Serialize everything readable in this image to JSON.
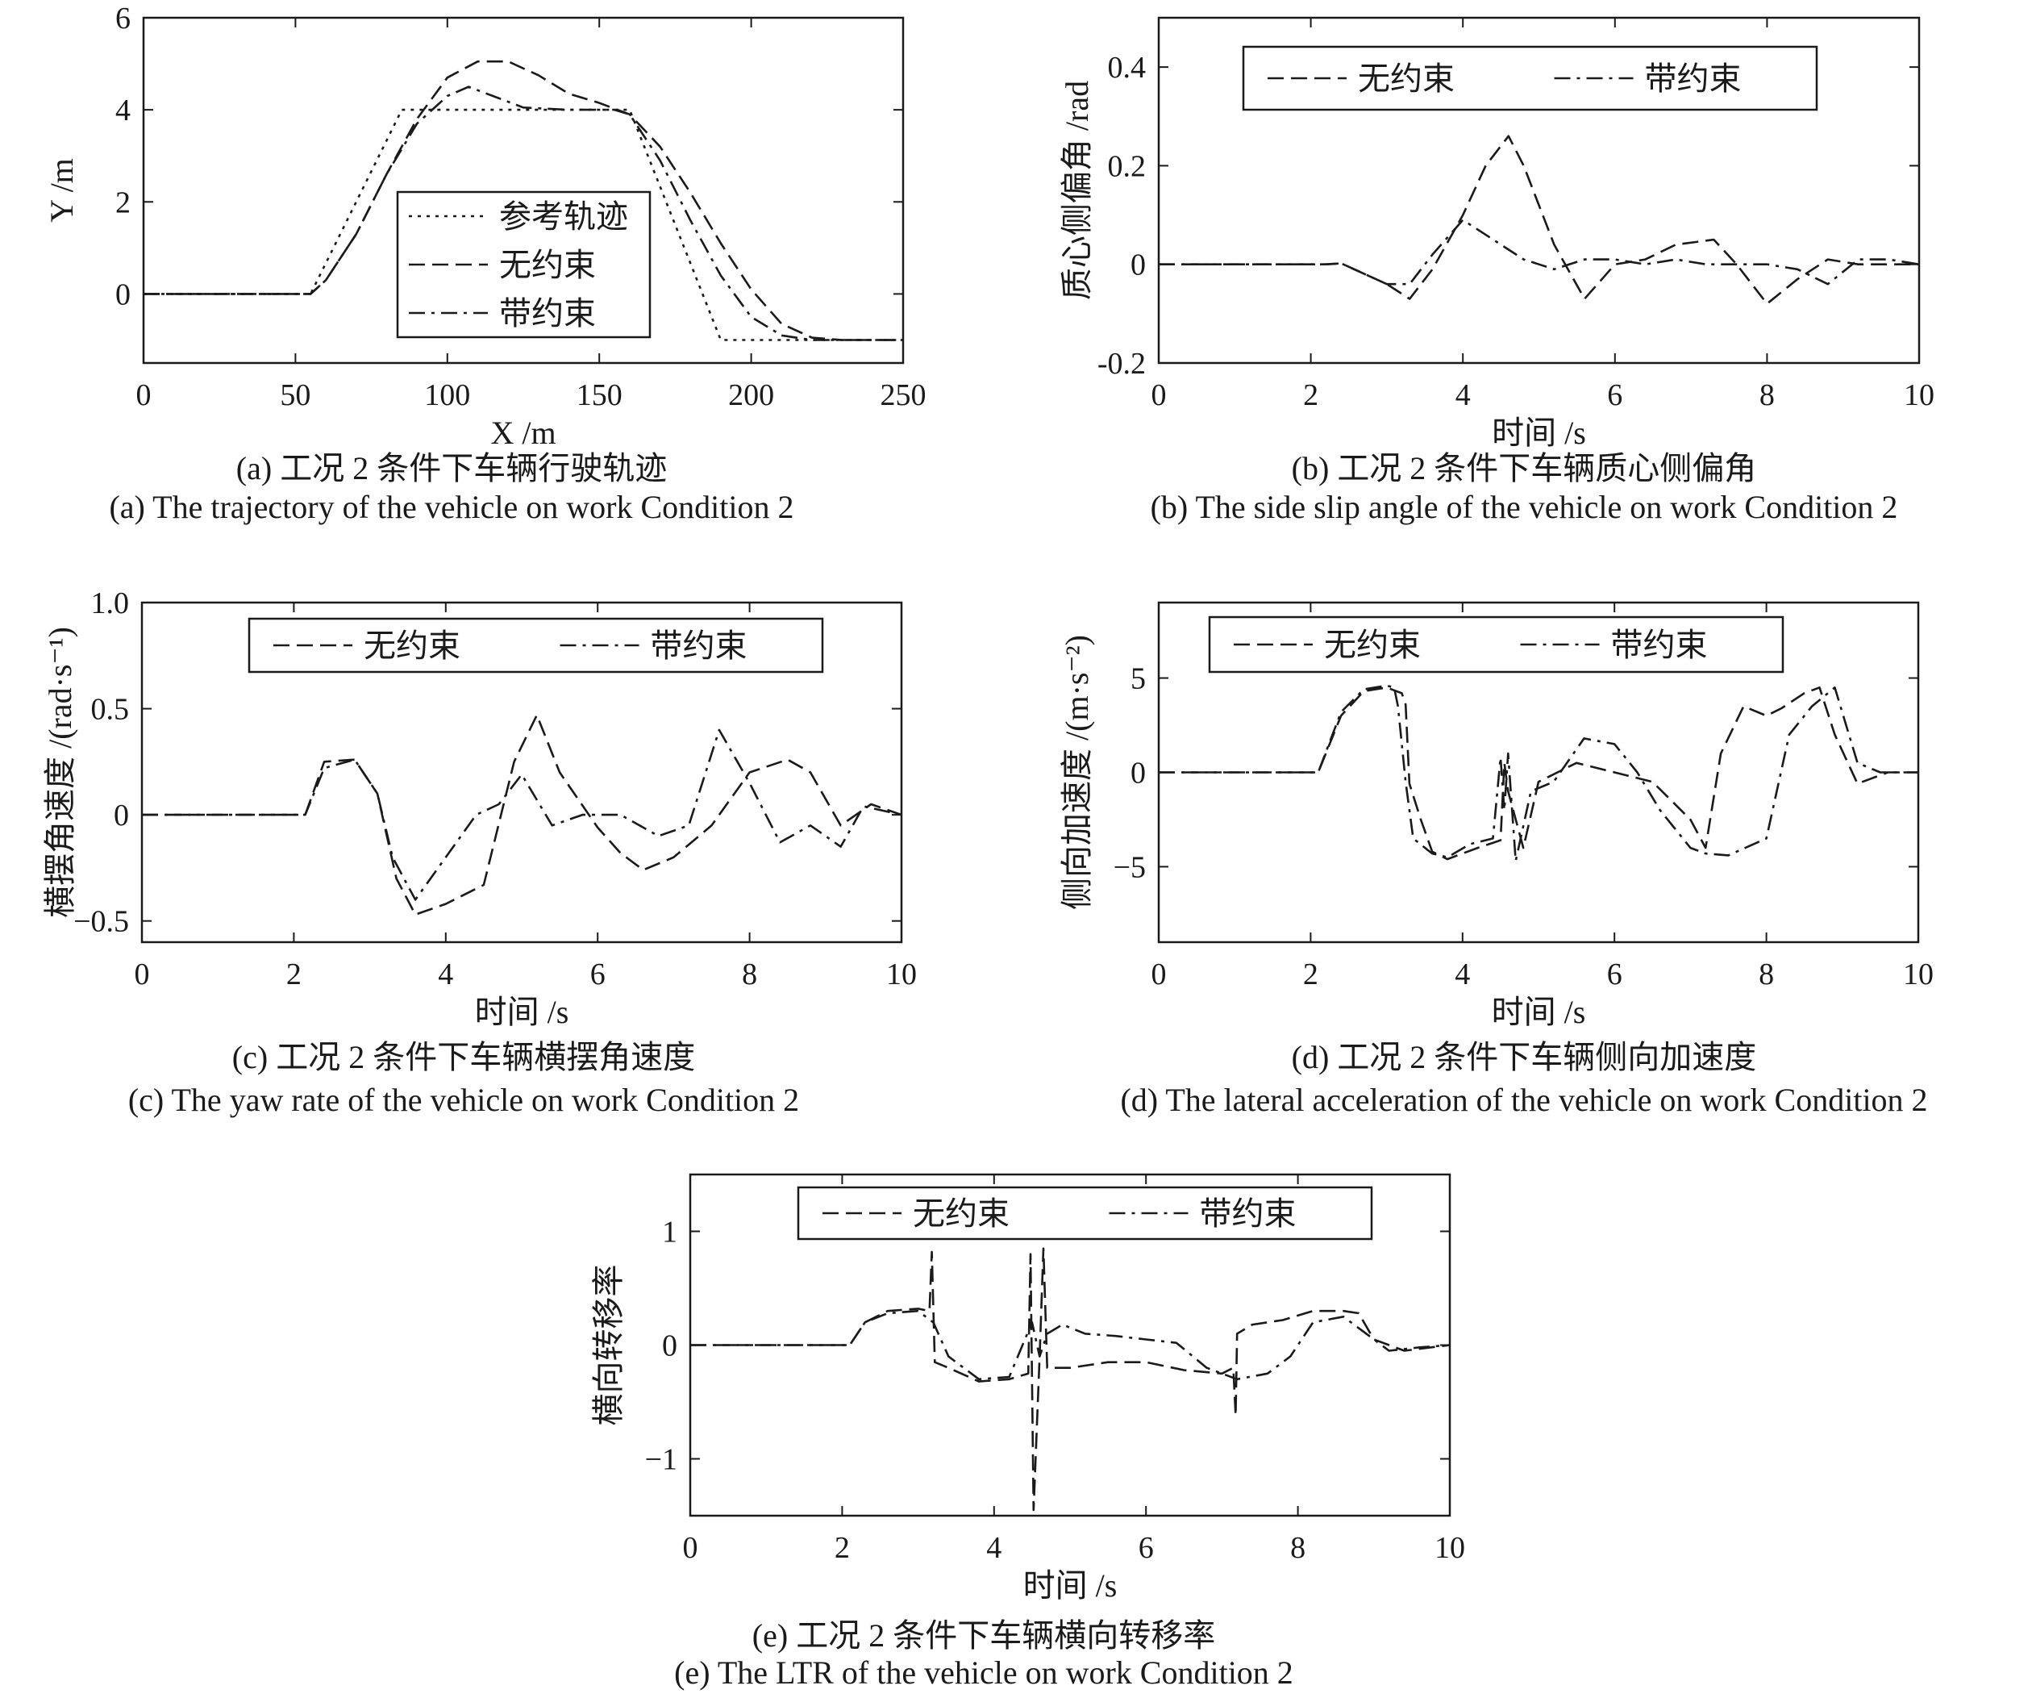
{
  "figures": [
    {
      "caption_cn": "(a) 工况 2 条件下车辆行驶轨迹",
      "caption_en": "(a) The trajectory of the vehicle on work Condition 2"
    },
    {
      "caption_cn": "(b) 工况 2 条件下车辆质心侧偏角",
      "caption_en": "(b) The side slip angle of the vehicle on work Condition 2"
    },
    {
      "caption_cn": "(c) 工况 2 条件下车辆横摆角速度",
      "caption_en": "(c) The yaw rate of the vehicle on work Condition 2"
    },
    {
      "caption_cn": "(d) 工况 2 条件下车辆侧向加速度",
      "caption_en": "(d) The lateral acceleration of the vehicle on work Condition 2"
    },
    {
      "caption_cn": "(e) 工况 2 条件下车辆横向转移率",
      "caption_en": "(e) The LTR of the vehicle on work Condition 2"
    }
  ],
  "colors": {
    "ink": "#1a1a1a"
  },
  "chart_data": [
    {
      "id": "a",
      "type": "line",
      "xlabel": "X /m",
      "ylabel": "Y /m",
      "xlim": [
        0,
        250
      ],
      "ylim": [
        -1.5,
        6
      ],
      "xticks": [
        0,
        50,
        100,
        150,
        200,
        250
      ],
      "yticks": [
        0,
        2,
        4,
        6
      ],
      "legend": "bottom-center",
      "series": [
        {
          "name": "参考轨迹",
          "dash": "dot",
          "x": [
            0,
            55,
            85,
            160,
            190,
            250
          ],
          "y": [
            0,
            0,
            4,
            4,
            -1,
            -1
          ]
        },
        {
          "name": "无约束",
          "dash": "dash",
          "x": [
            0,
            55,
            60,
            70,
            80,
            90,
            100,
            110,
            120,
            130,
            140,
            150,
            160,
            170,
            180,
            190,
            200,
            210,
            220,
            230,
            250
          ],
          "y": [
            0,
            0,
            0.3,
            1.3,
            2.6,
            3.8,
            4.7,
            5.05,
            5.05,
            4.75,
            4.35,
            4.15,
            3.9,
            3.2,
            2.2,
            1.1,
            0.1,
            -0.65,
            -0.95,
            -1.0,
            -1.0
          ]
        },
        {
          "name": "带约束",
          "dash": "dashdot",
          "x": [
            0,
            55,
            60,
            70,
            80,
            90,
            100,
            107,
            115,
            125,
            140,
            155,
            160,
            170,
            180,
            190,
            200,
            210,
            220,
            250
          ],
          "y": [
            0,
            0,
            0.3,
            1.3,
            2.6,
            3.7,
            4.3,
            4.5,
            4.3,
            4.05,
            4.0,
            4.0,
            3.9,
            2.9,
            1.6,
            0.4,
            -0.5,
            -0.9,
            -1.0,
            -1.0
          ]
        }
      ]
    },
    {
      "id": "b",
      "type": "line",
      "xlabel": "时间 /s",
      "ylabel": "质心侧偏角 /rad",
      "xlim": [
        0,
        10
      ],
      "ylim": [
        -0.2,
        0.5
      ],
      "xticks": [
        0,
        2,
        4,
        6,
        8,
        10
      ],
      "yticks": [
        -0.2,
        0,
        0.2,
        0.4
      ],
      "legend": "top",
      "series": [
        {
          "name": "无约束",
          "dash": "dash",
          "x": [
            0,
            2.2,
            2.4,
            3.0,
            3.3,
            3.6,
            4.0,
            4.3,
            4.6,
            4.8,
            5.2,
            5.6,
            6.0,
            6.4,
            6.8,
            7.3,
            7.6,
            8.0,
            8.4,
            8.8,
            9.2,
            9.6,
            10
          ],
          "y": [
            0,
            0,
            0.002,
            -0.04,
            -0.07,
            -0.01,
            0.1,
            0.2,
            0.26,
            0.2,
            0.04,
            -0.07,
            0.0,
            0.01,
            0.04,
            0.05,
            0.0,
            -0.08,
            -0.03,
            0.01,
            0.0,
            0.0,
            0.0
          ]
        },
        {
          "name": "带约束",
          "dash": "dashdot",
          "x": [
            0,
            2.2,
            2.4,
            3.0,
            3.3,
            3.6,
            4.0,
            4.4,
            4.8,
            5.2,
            5.6,
            6.0,
            6.4,
            6.8,
            7.2,
            7.6,
            8.0,
            8.4,
            8.8,
            9.2,
            9.6,
            10
          ],
          "y": [
            0,
            0,
            0.002,
            -0.04,
            -0.04,
            0.02,
            0.09,
            0.05,
            0.01,
            -0.01,
            0.01,
            0.01,
            0.0,
            0.01,
            0.0,
            0.0,
            0.0,
            -0.01,
            -0.04,
            0.01,
            0.01,
            0.0
          ]
        }
      ]
    },
    {
      "id": "c",
      "type": "line",
      "xlabel": "时间 /s",
      "ylabel": "横摆角速度 /(rad·s⁻¹)",
      "xlim": [
        0,
        10
      ],
      "ylim": [
        -0.6,
        1.0
      ],
      "xticks": [
        0,
        2,
        4,
        6,
        8,
        10
      ],
      "yticks": [
        -0.5,
        0,
        0.5,
        1.0
      ],
      "ytick_labels": [
        "−0.5",
        "0",
        "0.5",
        "1.0"
      ],
      "legend": "top",
      "series": [
        {
          "name": "无约束",
          "dash": "dash",
          "x": [
            0,
            2.15,
            2.4,
            2.8,
            3.1,
            3.35,
            3.6,
            4.0,
            4.5,
            4.9,
            5.2,
            5.5,
            6.0,
            6.3,
            6.6,
            7.0,
            7.5,
            8.0,
            8.5,
            8.8,
            9.2,
            9.6,
            10
          ],
          "y": [
            0,
            0,
            0.25,
            0.26,
            0.1,
            -0.3,
            -0.47,
            -0.42,
            -0.33,
            0.25,
            0.47,
            0.2,
            -0.06,
            -0.18,
            -0.26,
            -0.2,
            -0.05,
            0.2,
            0.26,
            0.2,
            -0.05,
            0.05,
            0.0
          ]
        },
        {
          "name": "带约束",
          "dash": "dashdot",
          "x": [
            0,
            2.15,
            2.4,
            2.8,
            3.1,
            3.3,
            3.6,
            4.0,
            4.4,
            4.7,
            5.0,
            5.4,
            5.8,
            6.3,
            6.8,
            7.2,
            7.6,
            8.0,
            8.4,
            8.8,
            9.2,
            9.5,
            10
          ],
          "y": [
            0,
            0,
            0.22,
            0.26,
            0.1,
            -0.2,
            -0.4,
            -0.2,
            0.0,
            0.05,
            0.19,
            -0.05,
            0.0,
            0.0,
            -0.1,
            -0.05,
            0.4,
            0.15,
            -0.13,
            -0.05,
            -0.15,
            0.04,
            0.0
          ]
        }
      ]
    },
    {
      "id": "d",
      "type": "line",
      "xlabel": "时间 /s",
      "ylabel": "侧向加速度 /(m·s⁻²)",
      "xlim": [
        0,
        10
      ],
      "ylim": [
        -9,
        9
      ],
      "xticks": [
        0,
        2,
        4,
        6,
        8,
        10
      ],
      "yticks": [
        -5,
        0,
        5
      ],
      "ytick_labels": [
        "−5",
        "0",
        "5"
      ],
      "legend": "top",
      "series": [
        {
          "name": "无约束",
          "dash": "dash",
          "x": [
            0,
            2.1,
            2.4,
            2.7,
            3.0,
            3.2,
            3.25,
            3.3,
            3.45,
            3.6,
            3.8,
            4.2,
            4.5,
            4.55,
            4.6,
            4.8,
            5.0,
            5.5,
            6.0,
            6.5,
            7.0,
            7.2,
            7.4,
            7.7,
            8.0,
            8.2,
            8.5,
            8.7,
            8.9,
            9.2,
            9.6,
            10
          ],
          "y": [
            0,
            0,
            3.0,
            4.3,
            4.5,
            4.2,
            3.6,
            -0.6,
            -2.5,
            -4.2,
            -4.6,
            -4.0,
            -3.6,
            0.5,
            -1.0,
            -4.0,
            -0.5,
            0.5,
            0.0,
            -0.5,
            -2.5,
            -4.0,
            1.0,
            3.5,
            3.0,
            3.4,
            4.2,
            4.5,
            2.0,
            -0.6,
            0.0,
            0.0
          ]
        },
        {
          "name": "带约束",
          "dash": "dashdot",
          "x": [
            0,
            2.1,
            2.4,
            2.7,
            3.0,
            3.1,
            3.15,
            3.25,
            3.35,
            3.6,
            3.8,
            4.1,
            4.4,
            4.5,
            4.55,
            4.6,
            4.7,
            4.9,
            5.2,
            5.6,
            6.0,
            6.3,
            6.6,
            7.0,
            7.2,
            7.5,
            8.0,
            8.3,
            8.6,
            8.9,
            9.2,
            9.5,
            10
          ],
          "y": [
            0,
            0,
            3.2,
            4.4,
            4.6,
            4.5,
            3.5,
            -0.5,
            -3.5,
            -4.3,
            -4.5,
            -3.8,
            -3.5,
            0.8,
            -2.0,
            1.0,
            -4.7,
            -1.0,
            -0.5,
            1.8,
            1.5,
            0.0,
            -2.0,
            -4.0,
            -4.3,
            -4.4,
            -3.5,
            2.0,
            3.5,
            4.5,
            0.5,
            0.0,
            0.0
          ]
        }
      ]
    },
    {
      "id": "e",
      "type": "line",
      "xlabel": "时间 /s",
      "ylabel": "横向转移率",
      "xlim": [
        0,
        10
      ],
      "ylim": [
        -1.5,
        1.5
      ],
      "xticks": [
        0,
        2,
        4,
        6,
        8,
        10
      ],
      "yticks": [
        -1,
        0,
        1
      ],
      "ytick_labels": [
        "−1",
        "0",
        "1"
      ],
      "legend": "top",
      "series": [
        {
          "name": "无约束",
          "dash": "dash",
          "x": [
            0,
            2.1,
            2.3,
            2.6,
            3.0,
            3.15,
            3.18,
            3.22,
            3.4,
            3.8,
            4.2,
            4.45,
            4.48,
            4.52,
            4.6,
            4.65,
            4.7,
            5.0,
            5.5,
            6.0,
            6.5,
            7.0,
            7.15,
            7.18,
            7.2,
            7.4,
            7.8,
            8.2,
            8.6,
            8.8,
            9.0,
            9.4,
            10
          ],
          "y": [
            0,
            0,
            0.2,
            0.3,
            0.32,
            0.3,
            0.82,
            -0.15,
            -0.2,
            -0.32,
            -0.3,
            -0.25,
            0.8,
            -1.45,
            -0.1,
            0.85,
            -0.2,
            -0.2,
            -0.15,
            -0.15,
            -0.22,
            -0.25,
            -0.2,
            -0.62,
            0.1,
            0.18,
            0.22,
            0.3,
            0.3,
            0.28,
            0.05,
            -0.05,
            0.0
          ]
        },
        {
          "name": "带约束",
          "dash": "dashdot",
          "x": [
            0,
            2.1,
            2.3,
            2.6,
            3.0,
            3.2,
            3.4,
            3.8,
            4.2,
            4.5,
            4.6,
            4.7,
            4.9,
            5.2,
            5.6,
            6.0,
            6.4,
            6.8,
            7.2,
            7.6,
            7.9,
            8.2,
            8.6,
            8.9,
            9.2,
            9.6,
            10
          ],
          "y": [
            0,
            0,
            0.2,
            0.28,
            0.3,
            0.2,
            -0.1,
            -0.3,
            -0.28,
            0.2,
            -0.1,
            0.1,
            0.18,
            0.1,
            0.08,
            0.05,
            0.02,
            -0.2,
            -0.3,
            -0.25,
            -0.1,
            0.2,
            0.25,
            0.1,
            -0.05,
            -0.02,
            0.0
          ]
        }
      ]
    }
  ]
}
